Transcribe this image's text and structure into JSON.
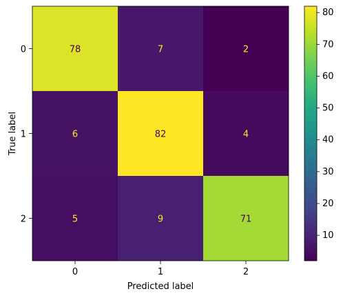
{
  "chart_data": {
    "type": "heatmap",
    "xlabel": "Predicted label",
    "ylabel": "True label",
    "x_categories": [
      "0",
      "1",
      "2"
    ],
    "y_categories": [
      "0",
      "1",
      "2"
    ],
    "values": [
      [
        78,
        7,
        2
      ],
      [
        6,
        82,
        4
      ],
      [
        5,
        9,
        71
      ]
    ],
    "value_labels": [
      [
        "78",
        "7",
        "2"
      ],
      [
        "6",
        "82",
        "4"
      ],
      [
        "5",
        "9",
        "71"
      ]
    ],
    "colormap": "viridis",
    "colorbar": {
      "min": 2,
      "max": 82,
      "ticks": [
        10,
        20,
        30,
        40,
        50,
        60,
        70,
        80
      ],
      "tick_labels": [
        "10",
        "20",
        "30",
        "40",
        "50",
        "60",
        "70",
        "80"
      ]
    },
    "colors": {
      "text_on_dark": "#fde725",
      "text_on_light": "#440154",
      "axis": "#000000"
    }
  }
}
